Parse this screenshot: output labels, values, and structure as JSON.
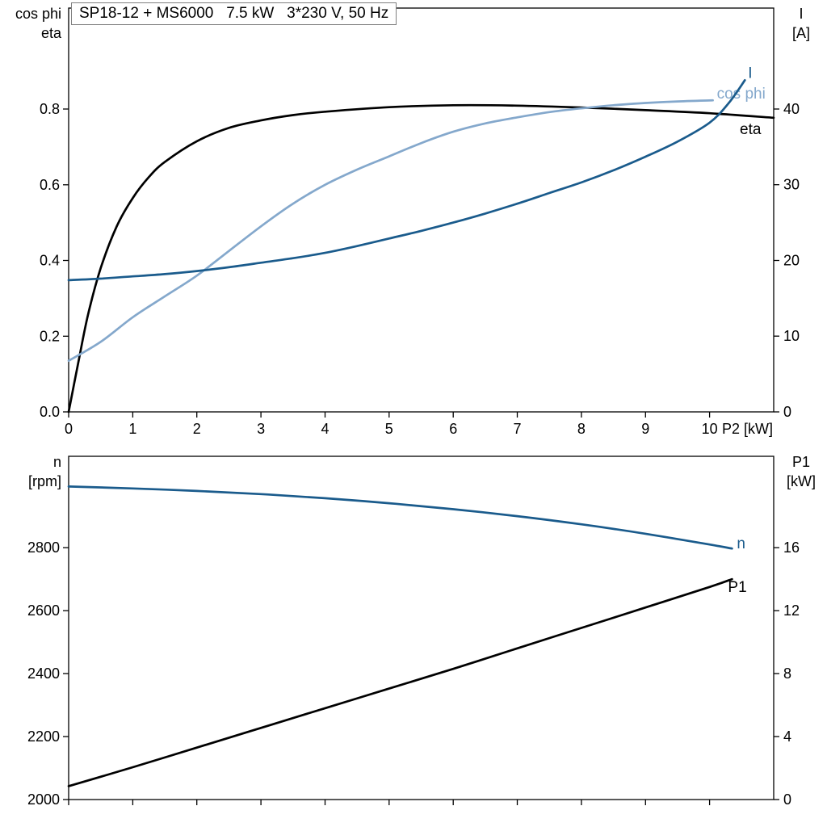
{
  "colors": {
    "black": "#000000",
    "dark_blue": "#1a5b8c",
    "light_blue": "#84a8cc",
    "frame": "#000000"
  },
  "chart_data": [
    {
      "type": "line",
      "title": "SP18-12 + MS6000   7.5 kW   3*230 V, 50 Hz",
      "xlabel": "P2 [kW]",
      "xlim": [
        0,
        11
      ],
      "xticks": [
        0,
        1,
        2,
        3,
        4,
        5,
        6,
        7,
        8,
        9,
        10
      ],
      "xtick_labels": [
        "0",
        "1",
        "2",
        "3",
        "4",
        "5",
        "6",
        "7",
        "8",
        "9",
        "10"
      ],
      "show_xtick_labels": true,
      "grid": false,
      "left_axis": {
        "label_lines": [
          "cos phi",
          "eta"
        ],
        "lim": [
          0,
          1.0667
        ],
        "ticks": [
          0,
          0.2,
          0.4,
          0.6,
          0.8
        ],
        "tick_labels": [
          "0.0",
          "0.2",
          "0.4",
          "0.6",
          "0.8"
        ]
      },
      "right_axis": {
        "label_lines": [
          "I",
          "[A]"
        ],
        "lim": [
          0,
          53.33
        ],
        "ticks": [
          0,
          10,
          20,
          30,
          40
        ],
        "tick_labels": [
          "0",
          "10",
          "20",
          "30",
          "40"
        ]
      },
      "series": [
        {
          "name": "eta",
          "label": "eta",
          "axis": "left",
          "color": "#000000",
          "x": [
            0,
            0.15,
            0.3,
            0.5,
            0.75,
            1,
            1.25,
            1.5,
            2,
            2.5,
            3,
            3.5,
            4,
            5,
            6,
            7,
            8,
            9,
            10,
            11
          ],
          "y": [
            0,
            0.13,
            0.255,
            0.38,
            0.49,
            0.565,
            0.62,
            0.66,
            0.715,
            0.75,
            0.77,
            0.784,
            0.793,
            0.805,
            0.81,
            0.809,
            0.804,
            0.797,
            0.789,
            0.777
          ]
        },
        {
          "name": "cos_phi",
          "label": "cos phi",
          "axis": "left",
          "color": "#84a8cc",
          "x": [
            0,
            0.5,
            1,
            1.5,
            2,
            2.5,
            3,
            3.5,
            4,
            4.5,
            5,
            5.5,
            6,
            6.5,
            7,
            7.5,
            8,
            8.5,
            9,
            9.5,
            10.05
          ],
          "y": [
            0.135,
            0.185,
            0.25,
            0.305,
            0.36,
            0.425,
            0.49,
            0.55,
            0.6,
            0.64,
            0.675,
            0.71,
            0.74,
            0.762,
            0.778,
            0.792,
            0.802,
            0.81,
            0.816,
            0.82,
            0.823
          ]
        },
        {
          "name": "I",
          "label": "I",
          "axis": "right",
          "color": "#1a5b8c",
          "x": [
            0,
            0.5,
            1,
            1.5,
            2,
            2.5,
            3,
            3.5,
            4,
            4.5,
            5,
            5.5,
            6,
            6.5,
            7,
            7.5,
            8,
            8.5,
            9,
            9.5,
            10,
            10.3,
            10.55
          ],
          "y": [
            17.4,
            17.6,
            17.9,
            18.2,
            18.6,
            19.1,
            19.7,
            20.3,
            21,
            21.9,
            22.9,
            23.9,
            25,
            26.2,
            27.5,
            28.9,
            30.3,
            31.9,
            33.7,
            35.7,
            38.2,
            40.8,
            43.8
          ]
        }
      ]
    },
    {
      "type": "line",
      "title": "",
      "xlabel": "",
      "xlim": [
        0,
        11
      ],
      "xticks": [
        0,
        1,
        2,
        3,
        4,
        5,
        6,
        7,
        8,
        9,
        10
      ],
      "xtick_labels": [
        "0",
        "1",
        "2",
        "3",
        "4",
        "5",
        "6",
        "7",
        "8",
        "9",
        "10"
      ],
      "show_xtick_labels": false,
      "grid": false,
      "left_axis": {
        "label_lines": [
          "n",
          "[rpm]"
        ],
        "lim": [
          2000,
          3090
        ],
        "ticks": [
          2000,
          2200,
          2400,
          2600,
          2800
        ],
        "tick_labels": [
          "2000",
          "2200",
          "2400",
          "2600",
          "2800"
        ]
      },
      "right_axis": {
        "label_lines": [
          "P1",
          "[kW]"
        ],
        "lim": [
          0,
          21.8
        ],
        "ticks": [
          0,
          4,
          8,
          12,
          16
        ],
        "tick_labels": [
          "0",
          "4",
          "8",
          "12",
          "16"
        ]
      },
      "series": [
        {
          "name": "n",
          "label": "n",
          "axis": "left",
          "color": "#1a5b8c",
          "x": [
            0,
            1,
            2,
            3,
            4,
            5,
            6,
            7,
            8,
            9,
            10,
            10.35
          ],
          "y": [
            2994,
            2988,
            2980,
            2970,
            2957,
            2941,
            2922,
            2900,
            2874,
            2844,
            2810,
            2797
          ]
        },
        {
          "name": "P1",
          "label": "P1",
          "axis": "right",
          "color": "#000000",
          "x": [
            0,
            1,
            2,
            3,
            4,
            5,
            6,
            7,
            8,
            9,
            10,
            10.35
          ],
          "y": [
            0.85,
            2.05,
            3.3,
            4.55,
            5.8,
            7.05,
            8.3,
            9.6,
            10.9,
            12.2,
            13.5,
            14.0
          ]
        }
      ]
    }
  ]
}
